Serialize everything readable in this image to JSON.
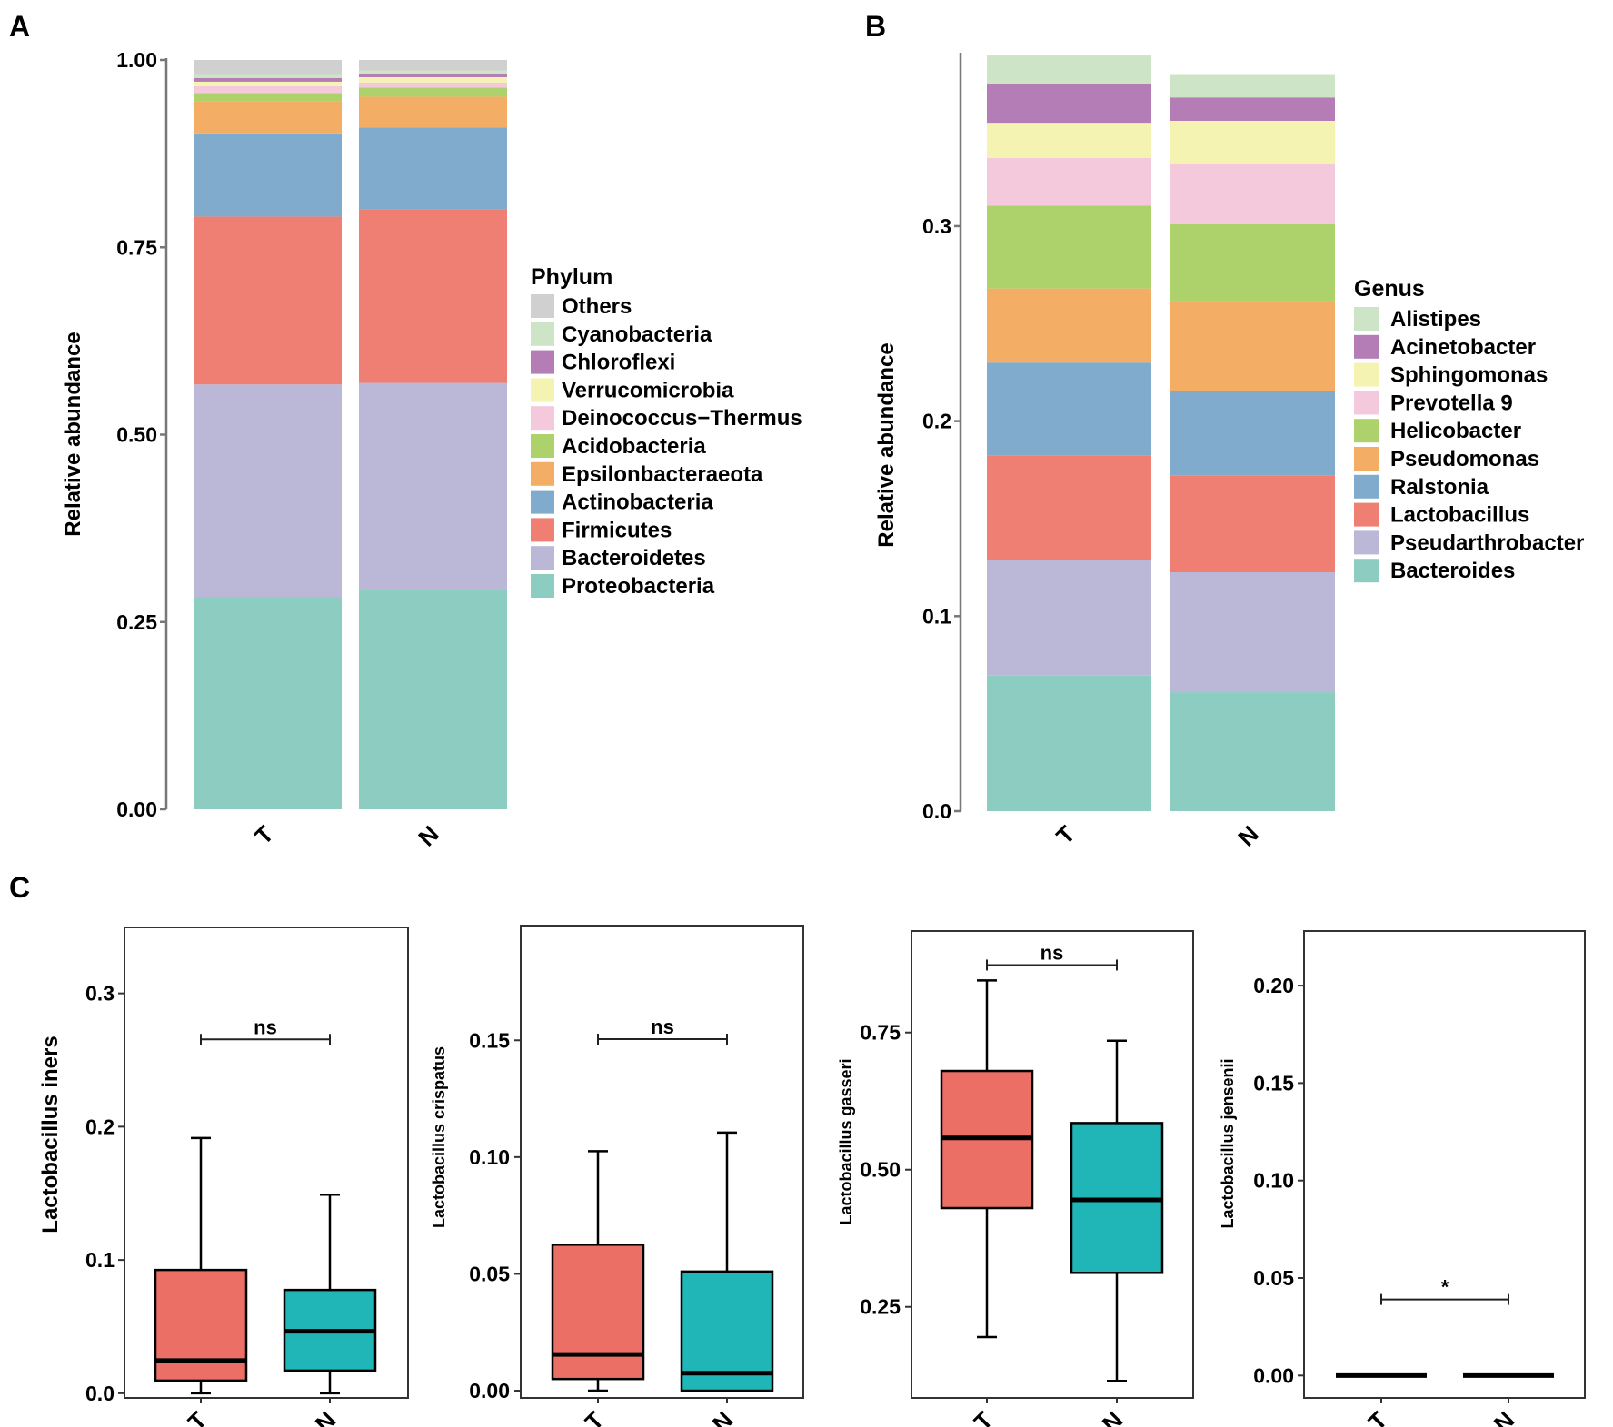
{
  "panels": {
    "A": "A",
    "B": "B",
    "C": "C"
  },
  "chart_data": [
    {
      "id": "A",
      "type": "bar",
      "stacked": true,
      "categories": [
        "T",
        "N"
      ],
      "ylabel": "Relative abundance",
      "ylim": [
        0,
        1
      ],
      "yticks": [
        "0.00",
        "0.25",
        "0.50",
        "0.75",
        "1.00"
      ],
      "legend_title": "Phylum",
      "legend_position": "right",
      "series": [
        {
          "name": "Proteobacteria",
          "color": "#8dcdc1",
          "values": [
            0.283,
            0.294
          ]
        },
        {
          "name": "Bacteroidetes",
          "color": "#bab7d7",
          "values": [
            0.284,
            0.275
          ]
        },
        {
          "name": "Firmicutes",
          "color": "#ef7f72",
          "values": [
            0.224,
            0.232
          ]
        },
        {
          "name": "Actinobacteria",
          "color": "#80abcd",
          "values": [
            0.111,
            0.109
          ]
        },
        {
          "name": "Epsilonbacteraeota",
          "color": "#f4ad65",
          "values": [
            0.043,
            0.041
          ]
        },
        {
          "name": "Acidobacteria",
          "color": "#add26b",
          "values": [
            0.011,
            0.012
          ]
        },
        {
          "name": "Deinococcus−Thermus",
          "color": "#f4c9dc",
          "values": [
            0.009,
            0.007
          ]
        },
        {
          "name": "Verrucomicrobia",
          "color": "#f5f3b1",
          "values": [
            0.006,
            0.007
          ]
        },
        {
          "name": "Chloroflexi",
          "color": "#b47db5",
          "values": [
            0.005,
            0.004
          ]
        },
        {
          "name": "Cyanobacteria",
          "color": "#cde5c6",
          "values": [
            0.004,
            0.005
          ]
        },
        {
          "name": "Others",
          "color": "#d0d0d0",
          "values": [
            0.02,
            0.014
          ]
        }
      ]
    },
    {
      "id": "B",
      "type": "bar",
      "stacked": true,
      "categories": [
        "T",
        "N"
      ],
      "ylabel": "Relative abundance",
      "ylim": [
        0,
        0.388
      ],
      "yticks": [
        "0.0",
        "0.1",
        "0.2",
        "0.3"
      ],
      "legend_title": "Genus",
      "legend_position": "right",
      "series": [
        {
          "name": "Bacteroides",
          "color": "#8dcdc1",
          "values": [
            0.0695,
            0.061
          ]
        },
        {
          "name": "Pseudarthrobacter",
          "color": "#bab7d7",
          "values": [
            0.0595,
            0.0615
          ]
        },
        {
          "name": "Lactobacillus",
          "color": "#ef7f72",
          "values": [
            0.0535,
            0.0495
          ]
        },
        {
          "name": "Ralstonia",
          "color": "#80abcd",
          "values": [
            0.0475,
            0.0435
          ]
        },
        {
          "name": "Pseudomonas",
          "color": "#f4ad65",
          "values": [
            0.038,
            0.046
          ]
        },
        {
          "name": "Helicobacter",
          "color": "#add26b",
          "values": [
            0.0425,
            0.0395
          ]
        },
        {
          "name": "Prevotella 9",
          "color": "#f4c9dc",
          "values": [
            0.0245,
            0.031
          ]
        },
        {
          "name": "Sphingomonas",
          "color": "#f5f3b1",
          "values": [
            0.018,
            0.022
          ]
        },
        {
          "name": "Acinetobacter",
          "color": "#b47db5",
          "values": [
            0.02,
            0.012
          ]
        },
        {
          "name": "Alistipes",
          "color": "#cde5c6",
          "values": [
            0.0145,
            0.0115
          ]
        }
      ]
    },
    {
      "id": "C1",
      "type": "box",
      "categories": [
        "T",
        "N"
      ],
      "ylabel": "Lactobacillus iners",
      "ylim": [
        -0.0035,
        0.3495
      ],
      "yticks": [
        "0.0",
        "0.1",
        "0.2",
        "0.3"
      ],
      "colors": [
        "#ec6f66",
        "#20b6b8"
      ],
      "boxes": [
        {
          "min": 0.0,
          "q1": 0.0095,
          "median": 0.0245,
          "q3": 0.0925,
          "max": 0.1915
        },
        {
          "min": 0.0,
          "q1": 0.017,
          "median": 0.0465,
          "q3": 0.0775,
          "max": 0.149
        }
      ],
      "significance": {
        "label": "ns",
        "y": 0.2655
      }
    },
    {
      "id": "C2",
      "type": "box",
      "categories": [
        "T",
        "N"
      ],
      "ylabel": "Lactobacillus crispatus",
      "ylim": [
        -0.0031,
        0.1991
      ],
      "yticks": [
        "0.00",
        "0.05",
        "0.10",
        "0.15"
      ],
      "colors": [
        "#ec6f66",
        "#20b6b8"
      ],
      "boxes": [
        {
          "min": 0.0,
          "q1": 0.005,
          "median": 0.0155,
          "q3": 0.0625,
          "max": 0.1025
        },
        {
          "min": 0.0,
          "q1": 0.0,
          "median": 0.0075,
          "q3": 0.051,
          "max": 0.1105
        }
      ],
      "significance": {
        "label": "ns",
        "y": 0.1505
      }
    },
    {
      "id": "C3",
      "type": "box",
      "categories": [
        "T",
        "N"
      ],
      "ylabel": "Lactobacillus gasseri",
      "ylim": [
        0.084,
        0.935
      ],
      "yticks": [
        "0.25",
        "0.50",
        "0.75"
      ],
      "colors": [
        "#ec6f66",
        "#20b6b8"
      ],
      "boxes": [
        {
          "min": 0.195,
          "q1": 0.43,
          "median": 0.558,
          "q3": 0.68,
          "max": 0.845
        },
        {
          "min": 0.115,
          "q1": 0.312,
          "median": 0.445,
          "q3": 0.585,
          "max": 0.735
        }
      ],
      "significance": {
        "label": "ns",
        "y": 0.873
      }
    },
    {
      "id": "C4",
      "type": "box",
      "categories": [
        "T",
        "N"
      ],
      "ylabel": "Lactobacillus jensenii",
      "ylim": [
        -0.0115,
        0.228
      ],
      "yticks": [
        "0.00",
        "0.05",
        "0.10",
        "0.15",
        "0.20"
      ],
      "colors": [
        "#ec6f66",
        "#20b6b8"
      ],
      "boxes": [
        {
          "min": 0.0,
          "q1": 0.0,
          "median": 0.0,
          "q3": 0.0,
          "max": 0.0
        },
        {
          "min": 0.0,
          "q1": 0.0,
          "median": 0.0,
          "q3": 0.0,
          "max": 0.0
        }
      ],
      "significance": {
        "label": "*",
        "y": 0.039
      }
    }
  ]
}
